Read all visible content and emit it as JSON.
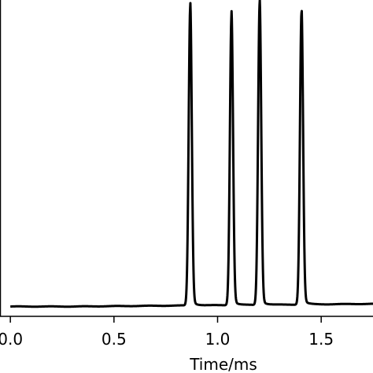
{
  "chart_data": {
    "type": "line",
    "title": "",
    "xlabel": "Time/ms",
    "ylabel": "",
    "xlim": [
      -0.05,
      1.75
    ],
    "ylim": [
      -0.03,
      1.0
    ],
    "xticks": [
      "0.0",
      "0.5",
      "1.0",
      "1.5"
    ],
    "xtick_values": [
      0.0,
      0.5,
      1.0,
      1.5
    ],
    "grid": false,
    "legend": "none",
    "line_color": "#000000",
    "series": [
      {
        "peaks": [
          {
            "center": 0.868,
            "height": 0.97
          },
          {
            "center": 1.067,
            "height": 0.94
          },
          {
            "center": 1.203,
            "height": 0.98
          },
          {
            "center": 1.405,
            "height": 0.95
          }
        ],
        "x": [
          0.0,
          0.1,
          0.2,
          0.3,
          0.4,
          0.5,
          0.6,
          0.7,
          0.8,
          0.85,
          0.868,
          0.89,
          0.95,
          1.04,
          1.067,
          1.09,
          1.15,
          1.18,
          1.203,
          1.23,
          1.3,
          1.38,
          1.405,
          1.43,
          1.5,
          1.6,
          1.75
        ],
        "values": [
          0.0,
          0.002,
          0.002,
          0.003,
          0.004,
          0.004,
          0.005,
          0.008,
          0.015,
          0.3,
          0.97,
          0.2,
          0.015,
          0.03,
          0.94,
          0.05,
          0.02,
          0.12,
          0.98,
          0.05,
          0.015,
          0.1,
          0.95,
          0.05,
          0.008,
          0.003,
          0.002
        ]
      }
    ]
  }
}
